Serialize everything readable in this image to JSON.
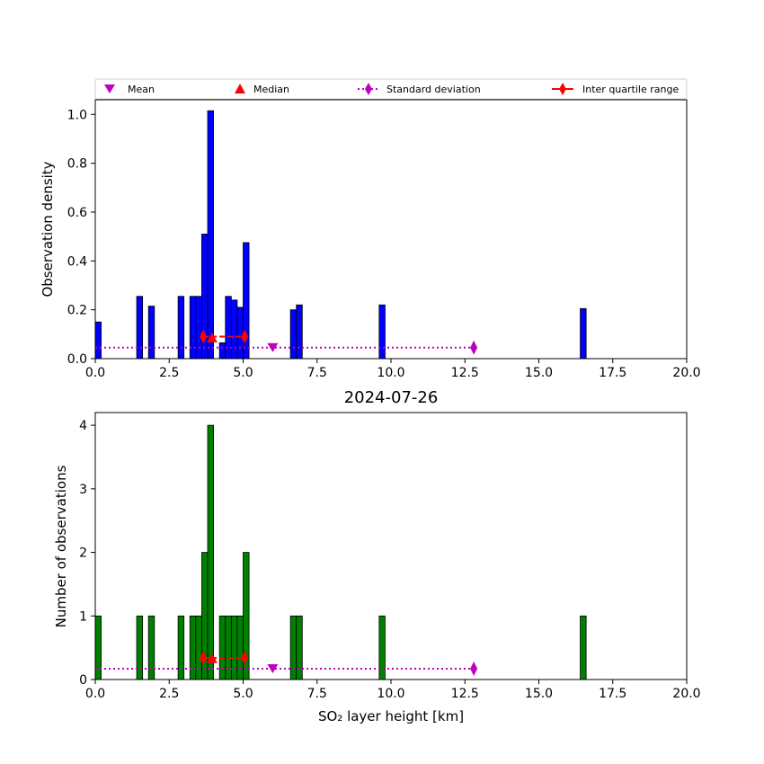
{
  "chart_data": [
    {
      "type": "bar",
      "title": "",
      "xlabel": "",
      "ylabel": "Observation density",
      "xlim": [
        0,
        20
      ],
      "ylim": [
        0,
        1.06
      ],
      "xticks": [
        "0.0",
        "2.5",
        "5.0",
        "7.5",
        "10.0",
        "12.5",
        "15.0",
        "17.5",
        "20.0"
      ],
      "yticks": [
        "0.0",
        "0.2",
        "0.4",
        "0.6",
        "0.8",
        "1.0"
      ],
      "bar_color": "#0000ff",
      "bars": [
        {
          "x0": 0.0,
          "x1": 0.2,
          "y": 0.15
        },
        {
          "x0": 1.4,
          "x1": 1.6,
          "y": 0.255
        },
        {
          "x0": 1.8,
          "x1": 2.0,
          "y": 0.215
        },
        {
          "x0": 2.8,
          "x1": 3.0,
          "y": 0.255
        },
        {
          "x0": 3.2,
          "x1": 3.4,
          "y": 0.255
        },
        {
          "x0": 3.4,
          "x1": 3.6,
          "y": 0.255
        },
        {
          "x0": 3.6,
          "x1": 3.8,
          "y": 0.51
        },
        {
          "x0": 3.8,
          "x1": 4.0,
          "y": 1.015
        },
        {
          "x0": 4.2,
          "x1": 4.4,
          "y": 0.065
        },
        {
          "x0": 4.4,
          "x1": 4.6,
          "y": 0.255
        },
        {
          "x0": 4.6,
          "x1": 4.8,
          "y": 0.24
        },
        {
          "x0": 4.8,
          "x1": 5.0,
          "y": 0.21
        },
        {
          "x0": 5.0,
          "x1": 5.2,
          "y": 0.475
        },
        {
          "x0": 6.6,
          "x1": 6.8,
          "y": 0.2
        },
        {
          "x0": 6.8,
          "x1": 7.0,
          "y": 0.22
        },
        {
          "x0": 9.6,
          "x1": 9.8,
          "y": 0.22
        },
        {
          "x0": 16.4,
          "x1": 16.6,
          "y": 0.205
        }
      ],
      "stats": {
        "mean": {
          "x": 6.0,
          "y": 0.045
        },
        "median": {
          "x": 3.95,
          "y": 0.085
        },
        "std": {
          "x0": 0.0,
          "x1": 12.8,
          "y": 0.045
        },
        "iqr": {
          "x0": 3.65,
          "x1": 5.05,
          "y": 0.09
        }
      }
    },
    {
      "type": "bar",
      "title": "2024-07-26",
      "xlabel": "SO₂ layer height [km]",
      "ylabel": "Number of observations",
      "xlim": [
        0,
        20
      ],
      "ylim": [
        0,
        4.2
      ],
      "xticks": [
        "0.0",
        "2.5",
        "5.0",
        "7.5",
        "10.0",
        "12.5",
        "15.0",
        "17.5",
        "20.0"
      ],
      "yticks": [
        "0",
        "1",
        "2",
        "3",
        "4"
      ],
      "bar_color": "#008000",
      "bars": [
        {
          "x0": 0.0,
          "x1": 0.2,
          "y": 1
        },
        {
          "x0": 1.4,
          "x1": 1.6,
          "y": 1
        },
        {
          "x0": 1.8,
          "x1": 2.0,
          "y": 1
        },
        {
          "x0": 2.8,
          "x1": 3.0,
          "y": 1
        },
        {
          "x0": 3.2,
          "x1": 3.4,
          "y": 1
        },
        {
          "x0": 3.4,
          "x1": 3.6,
          "y": 1
        },
        {
          "x0": 3.6,
          "x1": 3.8,
          "y": 2
        },
        {
          "x0": 3.8,
          "x1": 4.0,
          "y": 4
        },
        {
          "x0": 4.2,
          "x1": 4.4,
          "y": 1
        },
        {
          "x0": 4.4,
          "x1": 4.6,
          "y": 1
        },
        {
          "x0": 4.6,
          "x1": 4.8,
          "y": 1
        },
        {
          "x0": 4.8,
          "x1": 5.0,
          "y": 1
        },
        {
          "x0": 5.0,
          "x1": 5.2,
          "y": 2
        },
        {
          "x0": 6.6,
          "x1": 6.8,
          "y": 1
        },
        {
          "x0": 6.8,
          "x1": 7.0,
          "y": 1
        },
        {
          "x0": 9.6,
          "x1": 9.8,
          "y": 1
        },
        {
          "x0": 16.4,
          "x1": 16.6,
          "y": 1
        }
      ],
      "stats": {
        "mean": {
          "x": 6.0,
          "y": 0.17
        },
        "median": {
          "x": 3.95,
          "y": 0.33
        },
        "std": {
          "x0": 0.0,
          "x1": 12.8,
          "y": 0.17
        },
        "iqr": {
          "x0": 3.65,
          "x1": 5.05,
          "y": 0.34
        }
      }
    }
  ],
  "legend": {
    "placement": "top",
    "entries": [
      {
        "label": "Mean",
        "marker": "triangle-down",
        "color": "#bf00bf"
      },
      {
        "label": "Median",
        "marker": "triangle-up",
        "color": "#ff0000"
      },
      {
        "label": "Standard deviation",
        "marker": "diamond-dotted-line",
        "color": "#bf00bf"
      },
      {
        "label": "Inter quartile range",
        "marker": "diamond-solid-line",
        "color": "#ff0000"
      }
    ]
  }
}
